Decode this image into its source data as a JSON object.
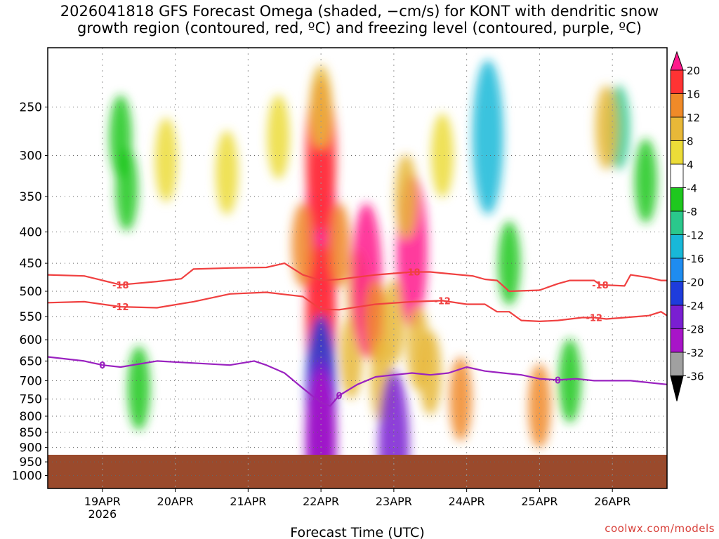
{
  "title_line1": "2026041818 GFS Forecast Omega (shaded, −cm/s) for KONT with dendritic snow",
  "title_line2": "growth region (contoured, red, ºC) and freezing level (contoured, purple, ºC)",
  "credit": "coolwx.com/models",
  "chart_data": {
    "type": "heatmap",
    "title": "2026041818 GFS Forecast Omega (shaded, −cm/s) for KONT with dendritic snow growth region (contoured, red, ºC) and freezing level (contoured, purple, ºC)",
    "xlabel": "Forecast Time (UTC)",
    "ylabel": "",
    "x_tick_labels": [
      "19APR",
      "20APR",
      "21APR",
      "22APR",
      "23APR",
      "24APR",
      "25APR",
      "26APR"
    ],
    "x_tick_sublabel": "2026",
    "x_range_hours": [
      -12,
      192
    ],
    "x_tick_hours": [
      6,
      30,
      54,
      78,
      102,
      126,
      150,
      174
    ],
    "y_tick_labels": [
      "250",
      "300",
      "350",
      "400",
      "450",
      "500",
      "550",
      "600",
      "650",
      "700",
      "750",
      "800",
      "850",
      "900",
      "950",
      "1000"
    ],
    "y_range_hpa": [
      200,
      1050
    ],
    "y_log": true,
    "ground_level_hpa": 925,
    "ground_color": "#9a4a2c",
    "colorbar": {
      "levels": [
        "20",
        "16",
        "12",
        "8",
        "4",
        "-4",
        "-8",
        "-12",
        "-16",
        "-20",
        "-24",
        "-28",
        "-32",
        "-36"
      ],
      "colors": [
        "#ff1a8c",
        "#ff3333",
        "#f08a28",
        "#e8b838",
        "#ecdc38",
        "#ffffff",
        "#1ec81e",
        "#2ac88c",
        "#18b8d8",
        "#1e8cf0",
        "#1e3cdc",
        "#7a1ed2",
        "#a814c8",
        "#a0a0a0",
        "#000000"
      ]
    },
    "omega_cells": [
      {
        "t": 78,
        "p": 380,
        "v": 24
      },
      {
        "t": 78,
        "p": 470,
        "v": 22
      },
      {
        "t": 78,
        "p": 300,
        "v": 18
      },
      {
        "t": 78,
        "p": 560,
        "v": 16
      },
      {
        "t": 72,
        "p": 420,
        "v": 12
      },
      {
        "t": 84,
        "p": 420,
        "v": 12
      },
      {
        "t": 78,
        "p": 250,
        "v": 10
      },
      {
        "t": 90,
        "p": 500,
        "v": 10
      },
      {
        "t": 88,
        "p": 640,
        "v": 8
      },
      {
        "t": 93,
        "p": 480,
        "v": 20
      },
      {
        "t": 96,
        "p": 560,
        "v": 12
      },
      {
        "t": 98,
        "p": 700,
        "v": 8
      },
      {
        "t": 102,
        "p": 560,
        "v": 8
      },
      {
        "t": 108,
        "p": 430,
        "v": 22
      },
      {
        "t": 106,
        "p": 350,
        "v": 8
      },
      {
        "t": 110,
        "p": 620,
        "v": 10
      },
      {
        "t": 114,
        "p": 680,
        "v": 8
      },
      {
        "t": 118,
        "p": 300,
        "v": 6
      },
      {
        "t": 124,
        "p": 750,
        "v": 14
      },
      {
        "t": 150,
        "p": 770,
        "v": 14
      },
      {
        "t": 78,
        "p": 730,
        "v": -24
      },
      {
        "t": 78,
        "p": 860,
        "v": -28
      },
      {
        "t": 78,
        "p": 900,
        "v": -32
      },
      {
        "t": 102,
        "p": 900,
        "v": -28
      },
      {
        "t": 27,
        "p": 305,
        "v": 6
      },
      {
        "t": 47,
        "p": 320,
        "v": 6
      },
      {
        "t": 64,
        "p": 280,
        "v": 6
      },
      {
        "t": 133,
        "p": 280,
        "v": -16
      },
      {
        "t": 176,
        "p": 270,
        "v": -12
      },
      {
        "t": 12,
        "p": 280,
        "v": -8
      },
      {
        "t": 14,
        "p": 340,
        "v": -8
      },
      {
        "t": 140,
        "p": 450,
        "v": -8
      },
      {
        "t": 185,
        "p": 330,
        "v": -8
      },
      {
        "t": 160,
        "p": 700,
        "v": -8
      },
      {
        "t": 18,
        "p": 720,
        "v": -8
      },
      {
        "t": 172,
        "p": 270,
        "v": 8
      }
    ],
    "contours": [
      {
        "name": "dgz -18°C",
        "color": "#f04040",
        "label": "-18",
        "t": [
          -12,
          0,
          12,
          24,
          32,
          36,
          48,
          60,
          66,
          72,
          78,
          84,
          96,
          108,
          114,
          124,
          128,
          132,
          136,
          140,
          150,
          156,
          160,
          168,
          170,
          178,
          180,
          186,
          190,
          192
        ],
        "p": [
          470,
          472,
          488,
          482,
          477,
          460,
          458,
          457,
          450,
          470,
          480,
          478,
          470,
          465,
          465,
          470,
          472,
          478,
          480,
          500,
          498,
          486,
          480,
          480,
          488,
          490,
          470,
          475,
          480,
          480
        ]
      },
      {
        "name": "dgz -12°C",
        "color": "#f04040",
        "label": "-12",
        "t": [
          -12,
          0,
          12,
          24,
          36,
          48,
          60,
          72,
          78,
          84,
          96,
          108,
          118,
          126,
          132,
          136,
          140,
          144,
          150,
          156,
          164,
          168,
          172,
          178,
          186,
          190,
          192
        ],
        "p": [
          522,
          520,
          530,
          532,
          520,
          505,
          502,
          510,
          535,
          536,
          525,
          520,
          518,
          525,
          525,
          540,
          540,
          558,
          560,
          558,
          552,
          552,
          555,
          552,
          548,
          540,
          548
        ]
      },
      {
        "name": "freezing level 0°C",
        "color": "#9a22c0",
        "label": "0",
        "t": [
          -12,
          0,
          6,
          12,
          24,
          36,
          48,
          56,
          60,
          66,
          72,
          75,
          78,
          81,
          84,
          90,
          96,
          102,
          108,
          114,
          120,
          126,
          132,
          138,
          144,
          150,
          156,
          162,
          168,
          174,
          180,
          186,
          192
        ],
        "p": [
          640,
          650,
          660,
          665,
          650,
          655,
          660,
          650,
          660,
          680,
          720,
          740,
          760,
          770,
          740,
          710,
          690,
          685,
          680,
          685,
          680,
          665,
          675,
          680,
          685,
          695,
          698,
          695,
          700,
          700,
          700,
          705,
          710
        ]
      }
    ]
  }
}
